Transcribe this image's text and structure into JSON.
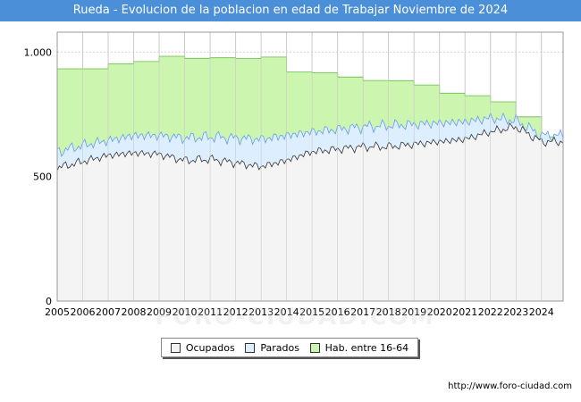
{
  "title": "Rueda - Evolucion de la poblacion en edad de Trabajar Noviembre de 2024",
  "footer_url": "http://www.foro-ciudad.com",
  "watermark": "FORO-CIUDAD.COM",
  "colors": {
    "title_bg": "#4b8fd8",
    "ocupados_fill": "#f4f4f4",
    "parados_fill": "#ddeeff",
    "hab_fill": "#ccf5b0",
    "hab_line": "#66bb44",
    "parados_line": "#6699ff",
    "ocupados_line": "#333333"
  },
  "chart_data": {
    "type": "area",
    "ylim": [
      0,
      1080
    ],
    "xlim": [
      2005,
      2024.85
    ],
    "yticks": [
      0,
      500,
      1000
    ],
    "ytick_labels": [
      "0",
      "500",
      "1.000"
    ],
    "xticks": [
      2005,
      2006,
      2007,
      2008,
      2009,
      2010,
      2011,
      2012,
      2013,
      2014,
      2015,
      2016,
      2017,
      2018,
      2019,
      2020,
      2021,
      2022,
      2023,
      2024
    ],
    "legend": [
      "Ocupados",
      "Parados",
      "Hab. entre 16-64"
    ],
    "hab_16_64": {
      "years": [
        2005,
        2006,
        2007,
        2008,
        2009,
        2010,
        2011,
        2012,
        2013,
        2014,
        2015,
        2016,
        2017,
        2018,
        2019,
        2020,
        2021,
        2022,
        2023,
        2024
      ],
      "values": [
        933,
        933,
        953,
        962,
        983,
        975,
        977,
        974,
        980,
        920,
        917,
        900,
        886,
        885,
        868,
        835,
        825,
        800,
        740,
        660
      ]
    },
    "parados_year_base": {
      "years": [
        2005,
        2006,
        2007,
        2008,
        2009,
        2010,
        2011,
        2012,
        2013,
        2014,
        2015,
        2016,
        2017,
        2018,
        2019,
        2020,
        2021,
        2022,
        2023,
        2024
      ],
      "values": [
        600,
        625,
        645,
        665,
        665,
        655,
        660,
        655,
        650,
        665,
        680,
        690,
        700,
        705,
        710,
        715,
        720,
        735,
        725,
        665
      ]
    },
    "ocupados_year_base": {
      "years": [
        2005,
        2006,
        2007,
        2008,
        2009,
        2010,
        2011,
        2012,
        2013,
        2014,
        2015,
        2016,
        2017,
        2018,
        2019,
        2020,
        2021,
        2022,
        2023,
        2024
      ],
      "values": [
        535,
        560,
        585,
        595,
        590,
        565,
        570,
        555,
        540,
        565,
        600,
        610,
        620,
        620,
        630,
        640,
        650,
        680,
        700,
        640
      ]
    }
  }
}
